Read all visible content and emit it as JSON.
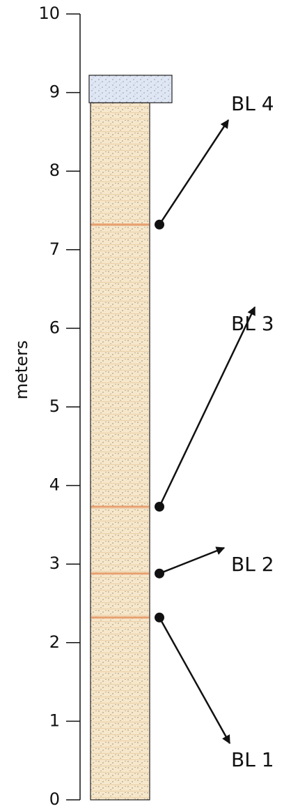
{
  "axis": {
    "label": "meters",
    "range": [
      0,
      10
    ],
    "ticks": [
      0,
      1,
      2,
      3,
      4,
      5,
      6,
      7,
      8,
      9,
      10
    ]
  },
  "column": {
    "sediment_top": 8.87,
    "cap_top": 9.22
  },
  "markers": [
    {
      "label": "BL 1",
      "depth": 2.32
    },
    {
      "label": "BL 2",
      "depth": 2.88
    },
    {
      "label": "BL 3",
      "depth": 3.73
    },
    {
      "label": "BL 4",
      "depth": 7.32
    }
  ]
}
